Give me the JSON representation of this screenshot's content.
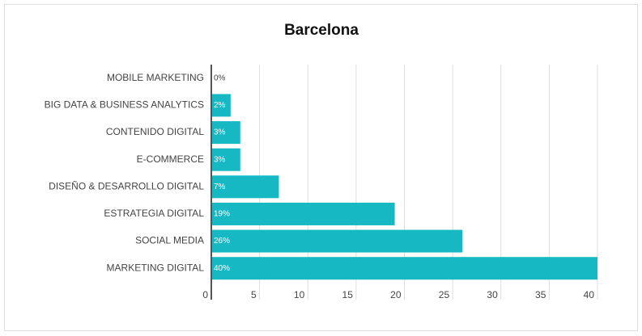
{
  "chart_data": {
    "type": "bar",
    "orientation": "horizontal",
    "title": "Barcelona",
    "categories": [
      "MOBILE MARKETING",
      "BIG DATA & BUSINESS ANALYTICS",
      "CONTENIDO DIGITAL",
      "E-COMMERCE",
      "DISEÑO & DESARROLLO DIGITAL",
      "ESTRATEGIA DIGITAL",
      "SOCIAL MEDIA",
      "MARKETING DIGITAL"
    ],
    "values": [
      0,
      2,
      3,
      3,
      7,
      19,
      26,
      40
    ],
    "value_labels": [
      "0%",
      "2%",
      "3%",
      "3%",
      "7%",
      "19%",
      "26%",
      "40%"
    ],
    "color": "#16b8c4",
    "xlim": [
      0,
      40
    ],
    "xticks": [
      0,
      5,
      10,
      15,
      20,
      25,
      30,
      35,
      40
    ],
    "grid": true
  }
}
